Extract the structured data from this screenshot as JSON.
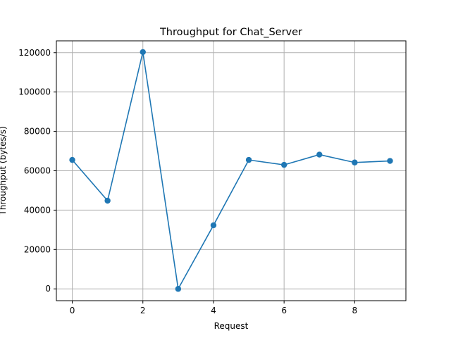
{
  "chart_data": {
    "type": "line",
    "title": "Throughput for Chat_Server",
    "xlabel": "Request",
    "ylabel": "Throughput (bytes/s)",
    "xlim": [
      -0.45,
      9.45
    ],
    "ylim": [
      -6000,
      126000
    ],
    "xticks": [
      0,
      2,
      4,
      6,
      8
    ],
    "yticks": [
      0,
      20000,
      40000,
      60000,
      80000,
      100000,
      120000
    ],
    "grid": true,
    "legend": "none",
    "series": [
      {
        "color": "#1f77b4",
        "marker": "circle",
        "x": [
          0,
          1,
          2,
          3,
          4,
          5,
          6,
          7,
          8,
          9
        ],
        "y": [
          65500,
          44800,
          120300,
          0,
          32300,
          65500,
          63000,
          68200,
          64200,
          65000
        ]
      }
    ]
  }
}
